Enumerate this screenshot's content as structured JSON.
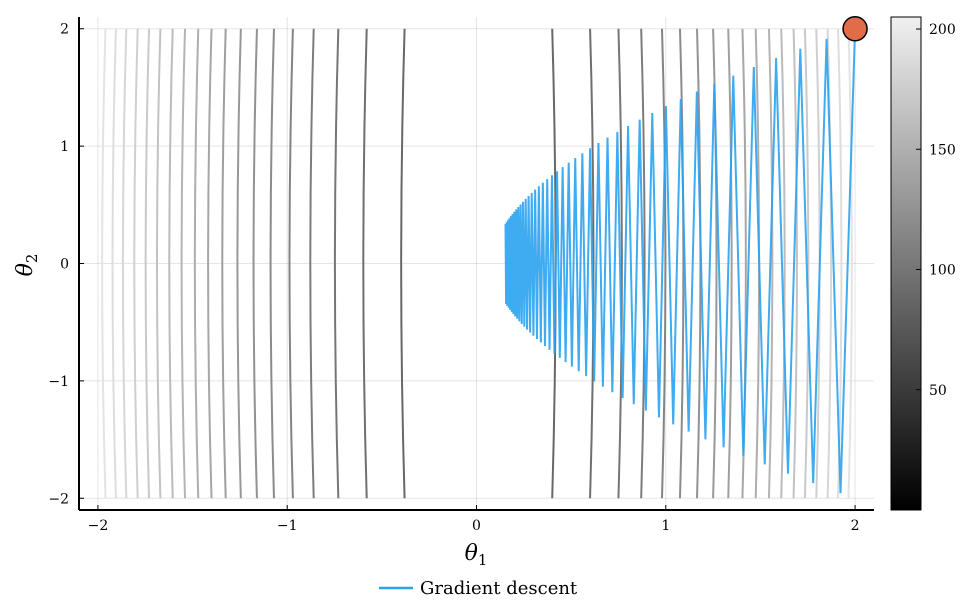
{
  "chart_data": {
    "type": "line",
    "description_free": true,
    "x_axis": {
      "label_symbol": "θ",
      "label_subscript": "1",
      "range": [
        -2.1,
        2.1
      ],
      "ticks": [
        -2,
        -1,
        0,
        1,
        2
      ],
      "tick_labels": [
        "−2",
        "−1",
        "0",
        "1",
        "2"
      ]
    },
    "y_axis": {
      "label_symbol": "θ",
      "label_subscript": "2",
      "range": [
        -2.1,
        2.1
      ],
      "ticks": [
        -2,
        -1,
        0,
        1,
        2
      ],
      "tick_labels": [
        "−2",
        "−1",
        "0",
        "1",
        "2"
      ]
    },
    "grid": true,
    "contours": {
      "colormap": "grayscale",
      "x_range": [
        -2,
        2
      ],
      "y_range": [
        -2,
        2
      ],
      "levels_x": [
        -1.96,
        -1.905,
        -1.85,
        -1.79,
        -1.73,
        -1.67,
        -1.605,
        -1.54,
        -1.47,
        -1.4,
        -1.325,
        -1.245,
        -1.16,
        -1.07,
        -0.97,
        -0.86,
        -0.73,
        -0.58,
        -0.38,
        0.4,
        0.6,
        0.75,
        0.87,
        0.98,
        1.075,
        1.165,
        1.25,
        1.33,
        1.405,
        1.475,
        1.545,
        1.61,
        1.675,
        1.735,
        1.795,
        1.855,
        1.91,
        1.965
      ],
      "color_values": [
        198,
        193,
        187,
        181,
        175,
        169,
        163,
        157,
        151,
        145,
        139,
        133,
        127,
        121,
        115,
        109,
        103,
        97,
        91,
        91,
        97,
        103,
        109,
        115,
        121,
        127,
        133,
        139,
        145,
        151,
        157,
        163,
        169,
        175,
        181,
        187,
        193,
        198
      ]
    },
    "colorbar": {
      "range": [
        0,
        205
      ],
      "ticks": [
        50,
        100,
        150,
        200
      ],
      "tick_labels": [
        "50",
        "100",
        "150",
        "200"
      ]
    },
    "series": [
      {
        "name": "Gradient descent",
        "color": "#2aa2ee",
        "start": [
          2,
          2
        ],
        "end": [
          0.08,
          0.0
        ],
        "x_ratio": 0.96,
        "y_flip": -0.978,
        "steps": 80
      }
    ],
    "start_marker": {
      "x": 2,
      "y": 2,
      "color": "#e06d48"
    },
    "legend": {
      "placement": "bottom-center",
      "entries": [
        "Gradient descent"
      ]
    }
  }
}
